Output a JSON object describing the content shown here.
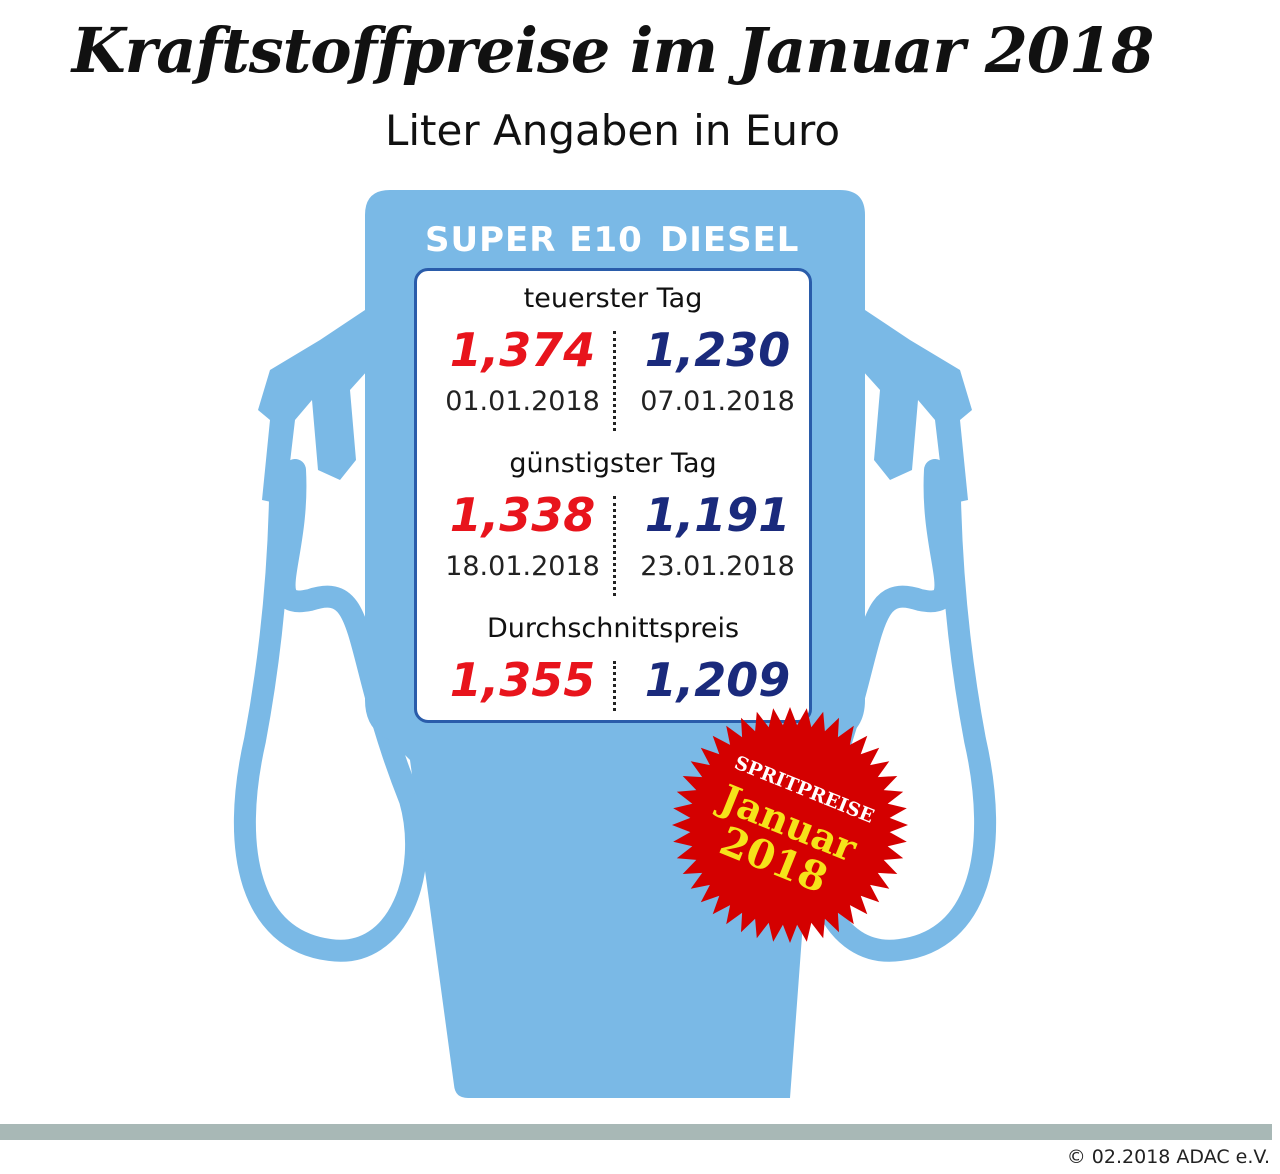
{
  "title": "Kraftstoffpreise im Januar 2018",
  "subtitle": "Liter Angaben in Euro",
  "columns": [
    "SUPER E10",
    "DIESEL"
  ],
  "sections": [
    {
      "label": "teuerster Tag",
      "super_e10": {
        "price": "1,374",
        "date": "01.01.2018"
      },
      "diesel": {
        "price": "1,230",
        "date": "07.01.2018"
      }
    },
    {
      "label": "günstigster Tag",
      "super_e10": {
        "price": "1,338",
        "date": "18.01.2018"
      },
      "diesel": {
        "price": "1,191",
        "date": "23.01.2018"
      }
    },
    {
      "label": "Durchschnittspreis",
      "super_e10": {
        "price": "1,355"
      },
      "diesel": {
        "price": "1,209"
      }
    }
  ],
  "badge": {
    "line1": "SPRITPREISE",
    "line2": "Januar",
    "line3": "2018"
  },
  "footer": "© 02.2018  ADAC e.V.",
  "colors": {
    "pump": "#7ab9e6",
    "super_e10": "#e8141c",
    "diesel": "#1a2a7c",
    "badge": "#d40000",
    "badge_text": "#f5e31a"
  }
}
